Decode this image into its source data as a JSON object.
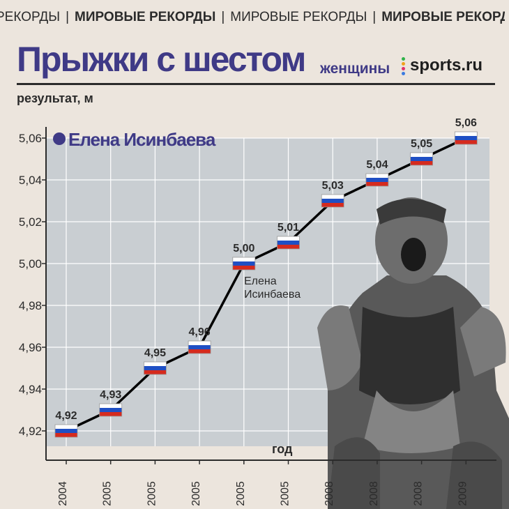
{
  "ticker": [
    {
      "text": "РЕКОРДЫ",
      "bold": false
    },
    {
      "text": "МИРОВЫЕ РЕКОРДЫ",
      "bold": true
    },
    {
      "text": "МИРОВЫЕ РЕКОРДЫ",
      "bold": false
    },
    {
      "text": "МИРОВЫЕ РЕКОРД",
      "bold": true
    }
  ],
  "header": {
    "title": "Прыжки с шестом",
    "subtitle": "женщины",
    "logo": "sports.ru",
    "logo_dot_colors": [
      "#2fb34a",
      "#f0a01a",
      "#e1306c",
      "#3b7be0"
    ]
  },
  "colors": {
    "accent": "#3f3a86",
    "plot_bg": "#c9ced2",
    "page_bg": "#ece5dd",
    "line": "#000000"
  },
  "legend": {
    "label": "Елена Исинбаева"
  },
  "annotation": {
    "line1": "Елена",
    "line2": "Исинбаева"
  },
  "chart_data": {
    "type": "line",
    "title": "Прыжки с шестом",
    "ylabel": "результат, м",
    "xlabel": "год",
    "ylim": [
      4.91,
      5.06
    ],
    "yticks": [
      "4,92",
      "4,94",
      "4,96",
      "4,98",
      "5,00",
      "5,02",
      "5,04",
      "5,06"
    ],
    "ytick_values": [
      4.92,
      4.94,
      4.96,
      4.98,
      5.0,
      5.02,
      5.04,
      5.06
    ],
    "categories": [
      "2004",
      "2005",
      "2005",
      "2005",
      "2005",
      "2005",
      "2008",
      "2008",
      "2008",
      "2009"
    ],
    "series": [
      {
        "name": "Елена Исинбаева",
        "values": [
          4.92,
          4.93,
          4.95,
          4.96,
          5.0,
          5.01,
          5.03,
          5.04,
          5.05,
          5.06
        ],
        "labels": [
          "4,92",
          "4,93",
          "4,95",
          "4,96",
          "5,00",
          "5,01",
          "5,03",
          "5,04",
          "5,05",
          "5,06"
        ]
      }
    ],
    "grid": true,
    "marker": "russia-flag"
  }
}
